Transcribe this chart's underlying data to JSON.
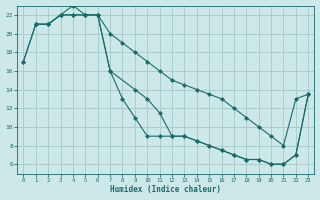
{
  "xlabel": "Humidex (Indice chaleur)",
  "ylabel": "",
  "background_color": "#cce8e8",
  "grid_color": "#aacccc",
  "line_color": "#1a6b6b",
  "xlim": [
    -0.5,
    23.5
  ],
  "ylim": [
    5.0,
    23.0
  ],
  "xticks": [
    0,
    1,
    2,
    3,
    4,
    5,
    6,
    7,
    8,
    9,
    10,
    11,
    12,
    13,
    14,
    15,
    16,
    17,
    18,
    19,
    20,
    21,
    22,
    23
  ],
  "yticks": [
    6,
    8,
    10,
    12,
    14,
    16,
    18,
    20,
    22
  ],
  "line1_x": [
    0,
    1,
    2,
    3,
    4,
    5,
    6,
    7,
    8,
    9,
    10,
    11,
    12,
    13,
    14,
    15,
    16,
    17,
    18,
    19,
    20,
    21,
    22,
    23
  ],
  "line1_y": [
    17,
    21,
    21,
    22,
    22,
    22,
    22,
    20,
    19,
    18,
    17,
    16,
    15,
    14.5,
    14,
    13.5,
    13,
    12,
    11,
    10,
    9,
    8,
    13,
    13.5
  ],
  "line2_x": [
    0,
    1,
    2,
    3,
    4,
    5,
    6,
    7,
    8,
    9,
    10,
    11,
    12,
    13,
    14,
    15,
    16,
    17,
    18,
    19,
    20,
    21,
    22,
    23
  ],
  "line2_y": [
    17,
    21,
    21,
    22,
    22,
    22,
    22,
    16,
    13,
    11,
    9,
    9,
    9,
    9,
    8.5,
    8,
    7.5,
    7,
    6.5,
    6.5,
    6,
    6,
    7,
    13.5
  ],
  "line3_x": [
    1,
    2,
    3,
    4,
    5,
    6,
    7,
    9,
    10,
    11,
    12,
    13,
    14,
    15,
    16,
    17,
    18,
    19,
    20,
    21,
    22,
    23
  ],
  "line3_y": [
    21,
    21,
    22,
    23,
    22,
    22,
    16,
    14,
    13,
    11.5,
    9,
    9,
    8.5,
    8,
    7.5,
    7,
    6.5,
    6.5,
    6,
    6,
    7,
    13.5
  ]
}
